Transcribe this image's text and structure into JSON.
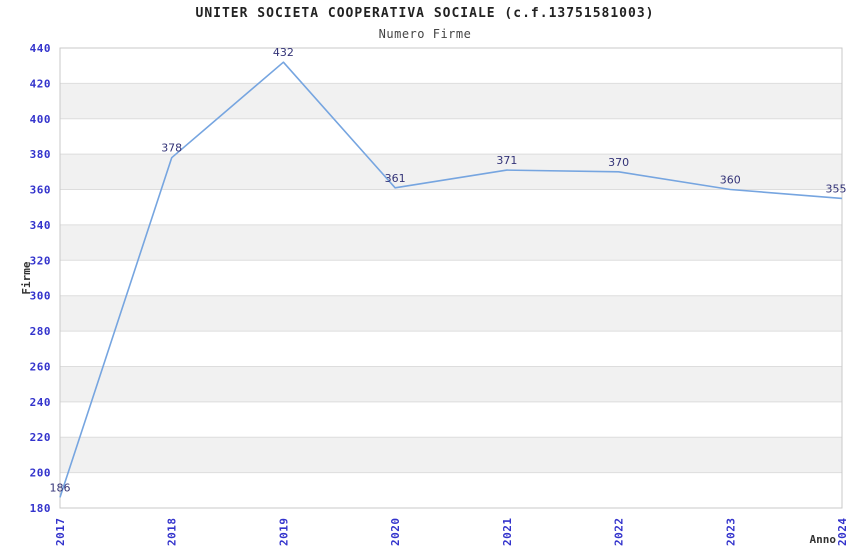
{
  "header": {
    "title": "UNITER SOCIETA COOPERATIVA SOCIALE (c.f.13751581003)",
    "subtitle": "Numero Firme"
  },
  "chart_data": {
    "type": "line",
    "title": "UNITER SOCIETA COOPERATIVA SOCIALE (c.f.13751581003)",
    "subtitle": "Numero Firme",
    "categories": [
      "2017",
      "2018",
      "2019",
      "2020",
      "2021",
      "2022",
      "2023",
      "2024"
    ],
    "values": [
      186,
      378,
      432,
      361,
      371,
      370,
      360,
      355
    ],
    "xlabel": "Anno",
    "ylabel": "Firme",
    "ylim": [
      180,
      440
    ],
    "ytick_step": 20,
    "grid": true,
    "banded_background": true,
    "legend": "none",
    "colors": {
      "line": "#76A5E0",
      "tick_label": "#3333CC",
      "data_label": "#333377",
      "band_light": "#FFFFFF",
      "band_dark": "#F1F1F1",
      "grid": "#DDDDDD",
      "border": "#C9C9C9",
      "title": "#222222",
      "subtitle": "#444444",
      "axis_title": "#333333"
    }
  }
}
